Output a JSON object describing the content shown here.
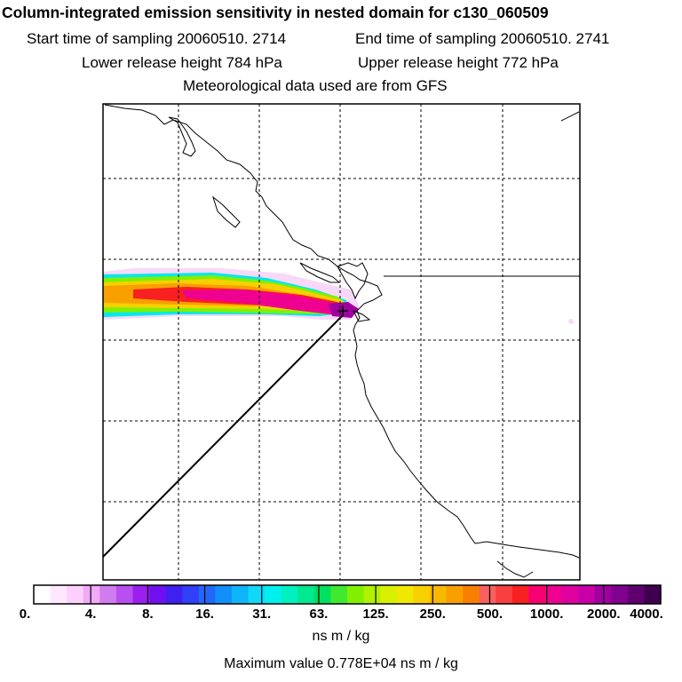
{
  "header": {
    "title": "Column-integrated emission sensitivity in nested domain for c130_060509",
    "start_time": "Start time of sampling 20060510.  2714",
    "end_time": "End time of sampling 20060510.  2741",
    "lower_release": "Lower release height  784 hPa",
    "upper_release": "Upper release height  772 hPa",
    "met_data": "Meteorological data used are from GFS"
  },
  "chart_data": {
    "type": "heatmap",
    "title": "Column-integrated emission sensitivity in nested domain for c130_060509",
    "colorbar": {
      "labels": [
        "0.",
        "4.",
        "8.",
        "16.",
        "31.",
        "63.",
        "125.",
        "250.",
        "500.",
        "1000.",
        "2000.",
        "4000."
      ],
      "unit": "ns m / kg",
      "colors": [
        "#ffffff",
        "#ffe8ff",
        "#fccffc",
        "#f0aaf8",
        "#d07cf0",
        "#b850f0",
        "#9b20f0",
        "#7010f0",
        "#4020f0",
        "#3040f8",
        "#2068f8",
        "#1090f8",
        "#10b4f8",
        "#10d8f8",
        "#00f0f0",
        "#00f0c0",
        "#00e890",
        "#00e060",
        "#40e830",
        "#80f000",
        "#b0f000",
        "#d8f000",
        "#f0e800",
        "#f8d000",
        "#f8b800",
        "#f8a000",
        "#f88000",
        "#f86060",
        "#f84040",
        "#f82020",
        "#f80070",
        "#f00090",
        "#e000a0",
        "#c800a8",
        "#a000a0",
        "#800090",
        "#600070",
        "#400050"
      ]
    },
    "max_value": "Maximum value  0.778E+04 ns m / kg",
    "grid": true
  }
}
